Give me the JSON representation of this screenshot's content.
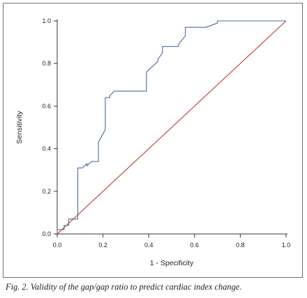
{
  "caption": "Fig. 2. Validity of the gap/gap ratio to predict cardiac index change.",
  "chart_data": {
    "type": "line",
    "title": "",
    "xlabel": "1 - Specificity",
    "ylabel": "Sensitivity",
    "xlim": [
      0.0,
      1.0
    ],
    "ylim": [
      0.0,
      1.0
    ],
    "x_ticks": [
      "0.0",
      "0.2",
      "0.4",
      "0.6",
      "0.8",
      "1.0"
    ],
    "y_ticks": [
      "0.0",
      "0.2",
      "0.4",
      "0.6",
      "0.8",
      "1.0"
    ],
    "grid": false,
    "legend": "none",
    "series": [
      {
        "color": "#4a6d9a",
        "x": [
          0.0,
          0.0,
          0.03,
          0.03,
          0.05,
          0.05,
          0.09,
          0.09,
          0.11,
          0.13,
          0.13,
          0.15,
          0.18,
          0.18,
          0.21,
          0.21,
          0.23,
          0.23,
          0.25,
          0.25,
          0.39,
          0.39,
          0.43,
          0.44,
          0.44,
          0.46,
          0.46,
          0.53,
          0.53,
          0.56,
          0.56,
          0.65,
          0.7,
          0.7,
          1.0
        ],
        "y": [
          0.0,
          0.02,
          0.02,
          0.04,
          0.04,
          0.07,
          0.07,
          0.31,
          0.31,
          0.33,
          0.32,
          0.34,
          0.34,
          0.43,
          0.49,
          0.64,
          0.64,
          0.65,
          0.67,
          0.67,
          0.67,
          0.76,
          0.8,
          0.81,
          0.82,
          0.85,
          0.88,
          0.88,
          0.89,
          0.93,
          0.97,
          0.97,
          0.99,
          1.0,
          1.0
        ]
      },
      {
        "color": "#c0392b",
        "x": [
          0.0,
          1.0
        ],
        "y": [
          0.0,
          1.0
        ]
      }
    ]
  }
}
